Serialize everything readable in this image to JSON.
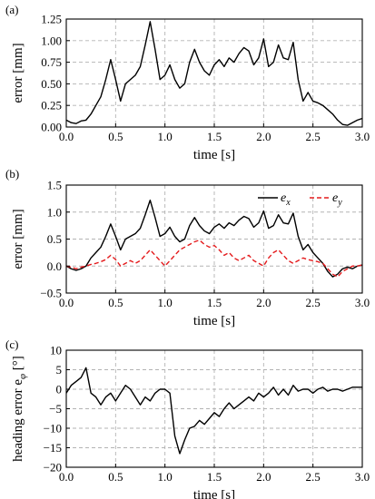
{
  "chart_data": [
    {
      "panel_label": "(a)",
      "type": "line",
      "xlabel": "time [s]",
      "ylabel": "error [mm]",
      "xlim": [
        0,
        3
      ],
      "ylim": [
        0,
        1.25
      ],
      "xticks": [
        "0.0",
        "0.5",
        "1.0",
        "1.5",
        "2.0",
        "2.5",
        "3.0"
      ],
      "yticks": [
        "0.00",
        "0.25",
        "0.50",
        "0.75",
        "1.00",
        "1.25"
      ],
      "grid": true,
      "series": [
        {
          "color": "#000000",
          "dash": "solid",
          "x": [
            0,
            0.05,
            0.1,
            0.15,
            0.2,
            0.25,
            0.3,
            0.35,
            0.4,
            0.45,
            0.5,
            0.55,
            0.6,
            0.65,
            0.7,
            0.75,
            0.8,
            0.85,
            0.9,
            0.95,
            1.0,
            1.05,
            1.1,
            1.15,
            1.2,
            1.25,
            1.3,
            1.35,
            1.4,
            1.45,
            1.5,
            1.55,
            1.6,
            1.65,
            1.7,
            1.75,
            1.8,
            1.85,
            1.9,
            1.95,
            2.0,
            2.05,
            2.1,
            2.15,
            2.2,
            2.25,
            2.3,
            2.35,
            2.4,
            2.45,
            2.5,
            2.55,
            2.6,
            2.65,
            2.7,
            2.75,
            2.8,
            2.85,
            2.9,
            2.95,
            3.0
          ],
          "y": [
            0.08,
            0.05,
            0.04,
            0.07,
            0.08,
            0.15,
            0.25,
            0.35,
            0.55,
            0.78,
            0.55,
            0.3,
            0.5,
            0.55,
            0.6,
            0.7,
            0.95,
            1.22,
            0.9,
            0.55,
            0.6,
            0.72,
            0.55,
            0.45,
            0.5,
            0.75,
            0.9,
            0.75,
            0.65,
            0.6,
            0.72,
            0.78,
            0.7,
            0.8,
            0.75,
            0.85,
            0.92,
            0.88,
            0.72,
            0.8,
            1.02,
            0.7,
            0.75,
            0.95,
            0.8,
            0.78,
            0.98,
            0.55,
            0.3,
            0.4,
            0.3,
            0.28,
            0.25,
            0.2,
            0.15,
            0.08,
            0.03,
            0.02,
            0.05,
            0.08,
            0.1
          ]
        }
      ]
    },
    {
      "panel_label": "(b)",
      "type": "line",
      "xlabel": "time [s]",
      "ylabel": "error [mm]",
      "xlim": [
        0,
        3
      ],
      "ylim": [
        -0.5,
        1.5
      ],
      "xticks": [
        "0.0",
        "0.5",
        "1.0",
        "1.5",
        "2.0",
        "2.5",
        "3.0"
      ],
      "yticks": [
        "−0.5",
        "0.0",
        "0.5",
        "1.0",
        "1.5"
      ],
      "grid": true,
      "legend_placement": "top-right",
      "series": [
        {
          "name": "e_x",
          "name_main": "e",
          "name_sub": "x",
          "color": "#000000",
          "dash": "solid",
          "x": [
            0,
            0.05,
            0.1,
            0.15,
            0.2,
            0.25,
            0.3,
            0.35,
            0.4,
            0.45,
            0.5,
            0.55,
            0.6,
            0.65,
            0.7,
            0.75,
            0.8,
            0.85,
            0.9,
            0.95,
            1.0,
            1.05,
            1.1,
            1.15,
            1.2,
            1.25,
            1.3,
            1.35,
            1.4,
            1.45,
            1.5,
            1.55,
            1.6,
            1.65,
            1.7,
            1.75,
            1.8,
            1.85,
            1.9,
            1.95,
            2.0,
            2.05,
            2.1,
            2.15,
            2.2,
            2.25,
            2.3,
            2.35,
            2.4,
            2.45,
            2.5,
            2.55,
            2.6,
            2.65,
            2.7,
            2.75,
            2.8,
            2.85,
            2.9,
            2.95,
            3.0
          ],
          "y": [
            0.0,
            -0.05,
            -0.08,
            -0.05,
            0.0,
            0.15,
            0.25,
            0.35,
            0.55,
            0.78,
            0.55,
            0.3,
            0.5,
            0.55,
            0.6,
            0.7,
            0.95,
            1.22,
            0.9,
            0.55,
            0.6,
            0.72,
            0.55,
            0.45,
            0.5,
            0.75,
            0.9,
            0.75,
            0.65,
            0.6,
            0.72,
            0.78,
            0.7,
            0.8,
            0.75,
            0.85,
            0.92,
            0.88,
            0.72,
            0.8,
            1.02,
            0.7,
            0.75,
            0.95,
            0.8,
            0.78,
            0.98,
            0.55,
            0.3,
            0.4,
            0.25,
            0.15,
            0.05,
            -0.1,
            -0.2,
            -0.15,
            -0.05,
            -0.02,
            -0.05,
            0.0,
            0.02
          ]
        },
        {
          "name": "e_y",
          "name_main": "e",
          "name_sub": "y",
          "color": "#e41a1c",
          "dash": "dashed",
          "x": [
            0,
            0.05,
            0.1,
            0.15,
            0.2,
            0.25,
            0.3,
            0.35,
            0.4,
            0.45,
            0.5,
            0.55,
            0.6,
            0.65,
            0.7,
            0.75,
            0.8,
            0.85,
            0.9,
            0.95,
            1.0,
            1.05,
            1.1,
            1.15,
            1.2,
            1.25,
            1.3,
            1.35,
            1.4,
            1.45,
            1.5,
            1.55,
            1.6,
            1.65,
            1.7,
            1.75,
            1.8,
            1.85,
            1.9,
            1.95,
            2.0,
            2.05,
            2.1,
            2.15,
            2.2,
            2.25,
            2.3,
            2.35,
            2.4,
            2.45,
            2.5,
            2.55,
            2.6,
            2.65,
            2.7,
            2.75,
            2.8,
            2.85,
            2.9,
            2.95,
            3.0
          ],
          "y": [
            0.0,
            -0.02,
            -0.05,
            -0.02,
            0.0,
            0.03,
            0.05,
            0.08,
            0.12,
            0.2,
            0.12,
            0.0,
            0.05,
            0.1,
            0.05,
            0.1,
            0.2,
            0.3,
            0.2,
            0.1,
            0.0,
            0.1,
            0.2,
            0.3,
            0.35,
            0.4,
            0.45,
            0.48,
            0.4,
            0.35,
            0.38,
            0.3,
            0.2,
            0.25,
            0.15,
            0.1,
            0.15,
            0.2,
            0.1,
            0.05,
            0.0,
            0.15,
            0.25,
            0.3,
            0.2,
            0.1,
            0.05,
            0.1,
            0.15,
            0.12,
            0.1,
            0.08,
            0.05,
            -0.05,
            -0.15,
            -0.2,
            -0.1,
            -0.05,
            0.0,
            0.0,
            0.02
          ]
        }
      ]
    },
    {
      "panel_label": "(c)",
      "type": "line",
      "xlabel": "time [s]",
      "ylabel_main": "heading error e",
      "ylabel_sub": "φ",
      "ylabel_unit": " [°]",
      "xlim": [
        0,
        3
      ],
      "ylim": [
        -20,
        10
      ],
      "xticks": [
        "0.0",
        "0.5",
        "1.0",
        "1.5",
        "2.0",
        "2.5",
        "3.0"
      ],
      "yticks": [
        "−20",
        "−15",
        "−10",
        "−5",
        "0",
        "5",
        "10"
      ],
      "grid": true,
      "series": [
        {
          "color": "#000000",
          "dash": "solid",
          "x": [
            0,
            0.05,
            0.1,
            0.15,
            0.2,
            0.25,
            0.3,
            0.35,
            0.4,
            0.45,
            0.5,
            0.55,
            0.6,
            0.65,
            0.7,
            0.75,
            0.8,
            0.85,
            0.9,
            0.95,
            1.0,
            1.05,
            1.1,
            1.15,
            1.2,
            1.25,
            1.3,
            1.35,
            1.4,
            1.45,
            1.5,
            1.55,
            1.6,
            1.65,
            1.7,
            1.75,
            1.8,
            1.85,
            1.9,
            1.95,
            2.0,
            2.05,
            2.1,
            2.15,
            2.2,
            2.25,
            2.3,
            2.35,
            2.4,
            2.45,
            2.5,
            2.55,
            2.6,
            2.65,
            2.7,
            2.75,
            2.8,
            2.85,
            2.9,
            2.95,
            3.0
          ],
          "y": [
            -1.0,
            1.0,
            2.0,
            3.0,
            5.5,
            -1.0,
            -2.0,
            -4.0,
            -2.0,
            -1.0,
            -3.0,
            -1.0,
            1.0,
            0.0,
            -2.0,
            -4.0,
            -2.0,
            -3.0,
            -1.0,
            0.0,
            0.0,
            -1.0,
            -12.0,
            -16.5,
            -13.0,
            -10.0,
            -9.5,
            -8.0,
            -9.0,
            -7.5,
            -6.0,
            -7.0,
            -5.0,
            -3.5,
            -5.0,
            -4.0,
            -3.0,
            -2.0,
            -3.0,
            -1.0,
            -2.0,
            -1.0,
            0.5,
            -1.5,
            0.0,
            -1.5,
            1.0,
            -0.5,
            0.0,
            0.0,
            -1.0,
            0.0,
            0.5,
            -0.5,
            0.0,
            0.0,
            -0.5,
            0.0,
            0.5,
            0.5,
            0.5
          ]
        }
      ]
    }
  ]
}
